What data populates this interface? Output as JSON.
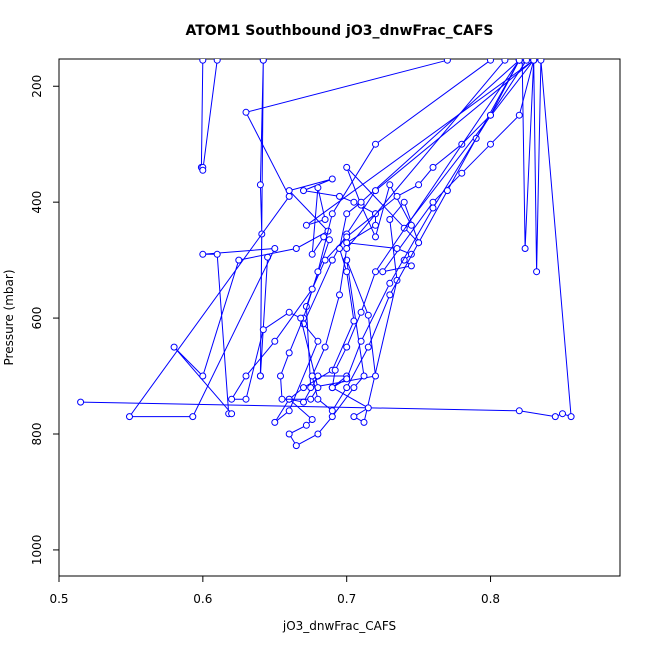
{
  "chart_data": {
    "type": "line",
    "title": "ATOM1 Southbound jO3_dnwFrac_CAFS",
    "xlabel": "jO3_dnwFrac_CAFS",
    "ylabel": "Pressure (mbar)",
    "xlim": [
      0.5,
      0.89
    ],
    "ylim": [
      1045,
      153
    ],
    "y_reversed": true,
    "xticks": [
      0.5,
      0.6,
      0.7,
      0.8
    ],
    "xtick_labels": [
      "0.5",
      "0.6",
      "0.7",
      "0.8"
    ],
    "yticks": [
      200,
      400,
      600,
      800,
      1000
    ],
    "ytick_labels": [
      "200",
      "400",
      "600",
      "800",
      "1000"
    ],
    "grid": false,
    "legend": "none",
    "series_color": "#0000ff",
    "series": [
      {
        "x": [
          0.6,
          0.599,
          0.6,
          0.6,
          0.61
        ],
        "y": [
          155,
          340,
          340,
          345,
          155
        ]
      },
      {
        "x": [
          0.642,
          0.64,
          0.641,
          0.64,
          0.645,
          0.64,
          0.642
        ],
        "y": [
          155,
          370,
          455,
          700,
          495,
          700,
          155
        ]
      },
      {
        "x": [
          0.515,
          0.82,
          0.845,
          0.85,
          0.856,
          0.835,
          0.832,
          0.83,
          0.824,
          0.822,
          0.83
        ],
        "y": [
          745,
          760,
          770,
          765,
          770,
          155,
          520,
          155,
          480,
          155,
          155
        ]
      },
      {
        "x": [
          0.77,
          0.63,
          0.66,
          0.549,
          0.593,
          0.65,
          0.6,
          0.61,
          0.618,
          0.62,
          0.58,
          0.6,
          0.625,
          0.665,
          0.687,
          0.66,
          0.69,
          0.67,
          0.695,
          0.705,
          0.72,
          0.72,
          0.7,
          0.735,
          0.745,
          0.74,
          0.745,
          0.725,
          0.76,
          0.78,
          0.8,
          0.82,
          0.83
        ],
        "y": [
          155,
          245,
          390,
          770,
          770,
          480,
          490,
          490,
          765,
          765,
          650,
          700,
          500,
          480,
          450,
          380,
          360,
          380,
          390,
          400,
          420,
          440,
          470,
          480,
          490,
          500,
          510,
          520,
          400,
          350,
          300,
          250,
          155
        ]
      },
      {
        "x": [
          0.83,
          0.672,
          0.685,
          0.68,
          0.676,
          0.684,
          0.688,
          0.672,
          0.675,
          0.72,
          0.715,
          0.7,
          0.712,
          0.705,
          0.69,
          0.68,
          0.665,
          0.66,
          0.672,
          0.676,
          0.66,
          0.67,
          0.68,
          0.7,
          0.69,
          0.715,
          0.705,
          0.712,
          0.735,
          0.73,
          0.74,
          0.75,
          0.7,
          0.71,
          0.72,
          0.73,
          0.745,
          0.74,
          0.83
        ],
        "y": [
          155,
          440,
          430,
          375,
          490,
          460,
          465,
          580,
          720,
          700,
          595,
          500,
          700,
          720,
          770,
          800,
          820,
          800,
          785,
          775,
          740,
          745,
          700,
          700,
          720,
          755,
          770,
          780,
          535,
          430,
          400,
          470,
          340,
          405,
          460,
          370,
          440,
          445,
          155
        ]
      },
      {
        "x": [
          0.83,
          0.72,
          0.7,
          0.69,
          0.67,
          0.68,
          0.66,
          0.65,
          0.66,
          0.67,
          0.69,
          0.705,
          0.7,
          0.695,
          0.7,
          0.71,
          0.82
        ],
        "y": [
          155,
          380,
          455,
          500,
          610,
          640,
          760,
          780,
          740,
          720,
          690,
          605,
          520,
          480,
          420,
          400,
          155
        ]
      },
      {
        "x": [
          0.8,
          0.72,
          0.69,
          0.68,
          0.67,
          0.66,
          0.654,
          0.655,
          0.675,
          0.68,
          0.668,
          0.66,
          0.642,
          0.63,
          0.62,
          0.63,
          0.65,
          0.676,
          0.685,
          0.7,
          0.72,
          0.735,
          0.75,
          0.76,
          0.78,
          0.8,
          0.82
        ],
        "y": [
          155,
          300,
          420,
          520,
          600,
          660,
          700,
          740,
          740,
          720,
          600,
          590,
          620,
          740,
          740,
          700,
          640,
          550,
          500,
          460,
          420,
          390,
          370,
          340,
          300,
          250,
          155
        ]
      },
      {
        "x": [
          0.81,
          0.7,
          0.695,
          0.685,
          0.676,
          0.68,
          0.69,
          0.7,
          0.715,
          0.73,
          0.75,
          0.77,
          0.79,
          0.82
        ],
        "y": [
          155,
          480,
          560,
          650,
          700,
          740,
          760,
          720,
          650,
          560,
          470,
          380,
          290,
          155
        ]
      },
      {
        "x": [
          0.82,
          0.72,
          0.71,
          0.7,
          0.692,
          0.69,
          0.7,
          0.71,
          0.73,
          0.76,
          0.8,
          0.825
        ],
        "y": [
          155,
          520,
          590,
          650,
          690,
          720,
          705,
          640,
          540,
          410,
          250,
          155
        ]
      }
    ]
  }
}
